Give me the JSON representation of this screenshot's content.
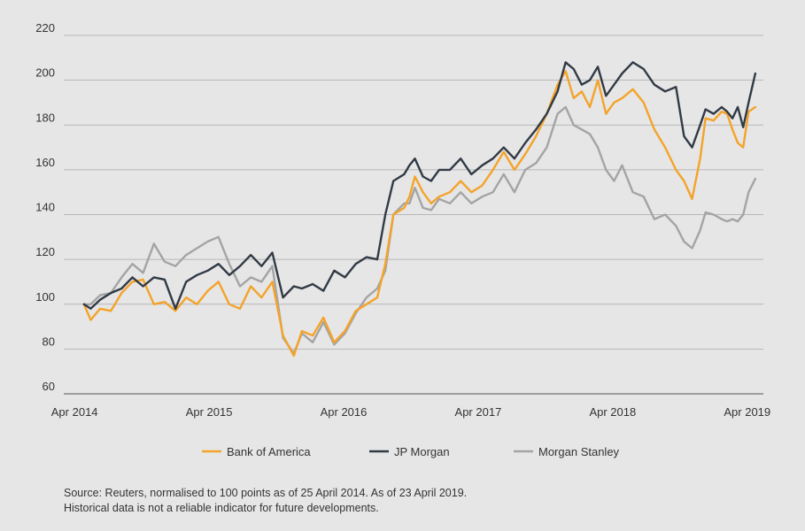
{
  "chart_data": {
    "type": "line",
    "title": "",
    "xlabel": "",
    "ylabel": "",
    "ylim": [
      60,
      220
    ],
    "y_ticks": [
      60,
      80,
      100,
      120,
      140,
      160,
      180,
      200,
      220
    ],
    "x_range": [
      2014.32,
      2019.31
    ],
    "x_ticks": [
      {
        "x": 2014.25,
        "label": "Apr 2014"
      },
      {
        "x": 2015.25,
        "label": "Apr 2015"
      },
      {
        "x": 2016.25,
        "label": "Apr 2016"
      },
      {
        "x": 2017.25,
        "label": "Apr 2017"
      },
      {
        "x": 2018.25,
        "label": "Apr 2018"
      },
      {
        "x": 2019.25,
        "label": "Apr 2019"
      }
    ],
    "grid": true,
    "legend_position": "bottom",
    "series": [
      {
        "name": "Bank of America",
        "color": "#f4a32a",
        "x": [
          2014.32,
          2014.37,
          2014.44,
          2014.52,
          2014.6,
          2014.68,
          2014.76,
          2014.84,
          2014.92,
          2015.0,
          2015.08,
          2015.16,
          2015.24,
          2015.32,
          2015.4,
          2015.48,
          2015.56,
          2015.64,
          2015.72,
          2015.8,
          2015.88,
          2015.94,
          2016.02,
          2016.1,
          2016.18,
          2016.26,
          2016.34,
          2016.42,
          2016.5,
          2016.56,
          2016.62,
          2016.7,
          2016.74,
          2016.78,
          2016.84,
          2016.9,
          2016.96,
          2017.04,
          2017.12,
          2017.2,
          2017.28,
          2017.36,
          2017.44,
          2017.52,
          2017.6,
          2017.68,
          2017.76,
          2017.84,
          2017.9,
          2017.96,
          2018.02,
          2018.08,
          2018.14,
          2018.2,
          2018.26,
          2018.32,
          2018.4,
          2018.48,
          2018.56,
          2018.64,
          2018.72,
          2018.78,
          2018.84,
          2018.9,
          2018.94,
          2019.0,
          2019.06,
          2019.1,
          2019.14,
          2019.18,
          2019.22,
          2019.26,
          2019.31
        ],
        "values": [
          100,
          93,
          98,
          97,
          105,
          110,
          111,
          100,
          101,
          97,
          103,
          100,
          106,
          110,
          100,
          98,
          108,
          103,
          110,
          86,
          77,
          88,
          86,
          94,
          83,
          88,
          97,
          100,
          103,
          118,
          140,
          143,
          148,
          157,
          150,
          145,
          148,
          150,
          155,
          150,
          153,
          160,
          168,
          160,
          167,
          175,
          185,
          198,
          204,
          192,
          195,
          188,
          200,
          185,
          190,
          192,
          196,
          190,
          178,
          170,
          160,
          155,
          147,
          165,
          183,
          182,
          186,
          185,
          178,
          172,
          170,
          186,
          188
        ]
      },
      {
        "name": "JP Morgan",
        "color": "#313a45",
        "x": [
          2014.32,
          2014.37,
          2014.44,
          2014.52,
          2014.6,
          2014.68,
          2014.76,
          2014.84,
          2014.92,
          2015.0,
          2015.08,
          2015.16,
          2015.24,
          2015.32,
          2015.4,
          2015.48,
          2015.56,
          2015.64,
          2015.72,
          2015.8,
          2015.88,
          2015.94,
          2016.02,
          2016.1,
          2016.18,
          2016.26,
          2016.34,
          2016.42,
          2016.5,
          2016.56,
          2016.62,
          2016.7,
          2016.74,
          2016.78,
          2016.84,
          2016.9,
          2016.96,
          2017.04,
          2017.12,
          2017.2,
          2017.28,
          2017.36,
          2017.44,
          2017.52,
          2017.6,
          2017.68,
          2017.76,
          2017.84,
          2017.9,
          2017.96,
          2018.02,
          2018.08,
          2018.14,
          2018.2,
          2018.26,
          2018.32,
          2018.4,
          2018.48,
          2018.56,
          2018.64,
          2018.72,
          2018.78,
          2018.84,
          2018.9,
          2018.94,
          2019.0,
          2019.06,
          2019.1,
          2019.14,
          2019.18,
          2019.22,
          2019.26,
          2019.31
        ],
        "values": [
          100,
          98,
          102,
          105,
          107,
          112,
          108,
          112,
          111,
          98,
          110,
          113,
          115,
          118,
          113,
          117,
          122,
          117,
          123,
          103,
          108,
          107,
          109,
          106,
          115,
          112,
          118,
          121,
          120,
          140,
          155,
          158,
          162,
          165,
          157,
          155,
          160,
          160,
          165,
          158,
          162,
          165,
          170,
          165,
          172,
          178,
          185,
          195,
          208,
          205,
          198,
          200,
          206,
          193,
          198,
          203,
          208,
          205,
          198,
          195,
          197,
          175,
          170,
          180,
          187,
          185,
          188,
          186,
          183,
          188,
          179,
          190,
          203
        ]
      },
      {
        "name": "Morgan Stanley",
        "color": "#a4a4a4",
        "x": [
          2014.32,
          2014.37,
          2014.44,
          2014.52,
          2014.6,
          2014.68,
          2014.76,
          2014.84,
          2014.92,
          2015.0,
          2015.08,
          2015.16,
          2015.24,
          2015.32,
          2015.4,
          2015.48,
          2015.56,
          2015.64,
          2015.72,
          2015.8,
          2015.88,
          2015.94,
          2016.02,
          2016.1,
          2016.18,
          2016.26,
          2016.34,
          2016.42,
          2016.5,
          2016.56,
          2016.62,
          2016.7,
          2016.74,
          2016.78,
          2016.84,
          2016.9,
          2016.96,
          2017.04,
          2017.12,
          2017.2,
          2017.28,
          2017.36,
          2017.44,
          2017.52,
          2017.6,
          2017.68,
          2017.76,
          2017.84,
          2017.9,
          2017.96,
          2018.02,
          2018.08,
          2018.14,
          2018.2,
          2018.26,
          2018.32,
          2018.4,
          2018.48,
          2018.56,
          2018.64,
          2018.72,
          2018.78,
          2018.84,
          2018.9,
          2018.94,
          2019.0,
          2019.06,
          2019.1,
          2019.14,
          2019.18,
          2019.22,
          2019.26,
          2019.31
        ],
        "values": [
          100,
          100,
          104,
          105,
          112,
          118,
          114,
          127,
          119,
          117,
          122,
          125,
          128,
          130,
          118,
          108,
          112,
          110,
          117,
          85,
          78,
          87,
          83,
          92,
          82,
          87,
          96,
          103,
          107,
          115,
          140,
          145,
          145,
          152,
          143,
          142,
          147,
          145,
          150,
          145,
          148,
          150,
          158,
          150,
          160,
          163,
          170,
          185,
          188,
          180,
          178,
          176,
          170,
          160,
          155,
          162,
          150,
          148,
          138,
          140,
          135,
          128,
          125,
          133,
          141,
          140,
          138,
          137,
          138,
          137,
          140,
          150,
          156
        ]
      }
    ],
    "source_lines": [
      "Source: Reuters, normalised to 100 points as of 25 April 2014. As of 23 April 2019.",
      "Historical data is not a reliable indicator for future developments."
    ]
  }
}
